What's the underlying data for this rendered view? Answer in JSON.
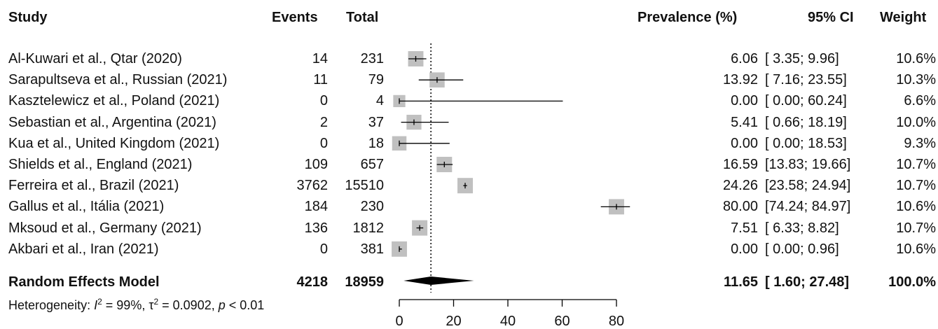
{
  "headers": {
    "study": "Study",
    "events": "Events",
    "total": "Total",
    "prevalence": "Prevalence (%)",
    "ci": "95% CI",
    "weight": "Weight"
  },
  "studies": [
    {
      "study": "Al-Kuwari et al., Qtar (2020)",
      "events": "14",
      "total": "231",
      "prev": "6.06",
      "ci": "[ 3.35; 9.96]",
      "weight": "10.6%"
    },
    {
      "study": "Sarapultseva et al., Russian (2021)",
      "events": "11",
      "total": "79",
      "prev": "13.92",
      "ci": "[ 7.16; 23.55]",
      "weight": "10.3%"
    },
    {
      "study": "Kasztelewicz et al., Poland (2021)",
      "events": "0",
      "total": "4",
      "prev": "0.00",
      "ci": "[ 0.00; 60.24]",
      "weight": "6.6%"
    },
    {
      "study": "Sebastian et al., Argentina (2021)",
      "events": "2",
      "total": "37",
      "prev": "5.41",
      "ci": "[ 0.66; 18.19]",
      "weight": "10.0%"
    },
    {
      "study": "Kua et al., United Kingdom (2021)",
      "events": "0",
      "total": "18",
      "prev": "0.00",
      "ci": "[ 0.00; 18.53]",
      "weight": "9.3%"
    },
    {
      "study": "Shields et al., England (2021)",
      "events": "109",
      "total": "657",
      "prev": "16.59",
      "ci": "[13.83; 19.66]",
      "weight": "10.7%"
    },
    {
      "study": "Ferreira et al., Brazil (2021)",
      "events": "3762",
      "total": "15510",
      "prev": "24.26",
      "ci": "[23.58; 24.94]",
      "weight": "10.7%"
    },
    {
      "study": "Gallus et al., Itália (2021)",
      "events": "184",
      "total": "230",
      "prev": "80.00",
      "ci": "[74.24; 84.97]",
      "weight": "10.6%"
    },
    {
      "study": "Mksoud et al., Germany (2021)",
      "events": "136",
      "total": "1812",
      "prev": "7.51",
      "ci": "[ 6.33; 8.82]",
      "weight": "10.7%"
    },
    {
      "study": "Akbari et al., Iran (2021)",
      "events": "0",
      "total": "381",
      "prev": "0.00",
      "ci": "[ 0.00; 0.96]",
      "weight": "10.6%"
    }
  ],
  "summary": {
    "label": "Random Effects Model",
    "events": "4218",
    "total": "18959",
    "prev": "11.65",
    "ci": "[ 1.60; 27.48]",
    "weight": "100.0%"
  },
  "heterogeneity": {
    "prefix": "Heterogeneity: ",
    "i2_symbol": "I",
    "i2_sup": "2",
    "i2_value": " = 99%, ",
    "tau_symbol": "τ",
    "tau_sup": "2",
    "tau_value": " = 0.0902, ",
    "p_symbol": "p",
    "p_value": " < 0.01"
  },
  "chart_data": {
    "type": "forest",
    "x_axis_ticks": [
      "0",
      "20",
      "40",
      "60",
      "80"
    ],
    "xlim": [
      0,
      80
    ],
    "reference_line": 11.65,
    "series": [
      {
        "name": "Al-Kuwari et al., Qtar (2020)",
        "estimate": 6.06,
        "lower": 3.35,
        "upper": 9.96,
        "weight": 10.6
      },
      {
        "name": "Sarapultseva et al., Russian (2021)",
        "estimate": 13.92,
        "lower": 7.16,
        "upper": 23.55,
        "weight": 10.3
      },
      {
        "name": "Kasztelewicz et al., Poland (2021)",
        "estimate": 0.0,
        "lower": 0.0,
        "upper": 60.24,
        "weight": 6.6
      },
      {
        "name": "Sebastian et al., Argentina (2021)",
        "estimate": 5.41,
        "lower": 0.66,
        "upper": 18.19,
        "weight": 10.0
      },
      {
        "name": "Kua et al., United Kingdom (2021)",
        "estimate": 0.0,
        "lower": 0.0,
        "upper": 18.53,
        "weight": 9.3
      },
      {
        "name": "Shields et al., England (2021)",
        "estimate": 16.59,
        "lower": 13.83,
        "upper": 19.66,
        "weight": 10.7
      },
      {
        "name": "Ferreira et al., Brazil (2021)",
        "estimate": 24.26,
        "lower": 23.58,
        "upper": 24.94,
        "weight": 10.7
      },
      {
        "name": "Gallus et al., Itália (2021)",
        "estimate": 80.0,
        "lower": 74.24,
        "upper": 84.97,
        "weight": 10.6
      },
      {
        "name": "Mksoud et al., Germany (2021)",
        "estimate": 7.51,
        "lower": 6.33,
        "upper": 8.82,
        "weight": 10.7
      },
      {
        "name": "Akbari et al., Iran (2021)",
        "estimate": 0.0,
        "lower": 0.0,
        "upper": 0.96,
        "weight": 10.6
      }
    ],
    "pooled": {
      "estimate": 11.65,
      "lower": 1.6,
      "upper": 27.48
    },
    "colors": {
      "square": "#c0c0c0",
      "line": "#000000",
      "diamond": "#000000"
    }
  }
}
